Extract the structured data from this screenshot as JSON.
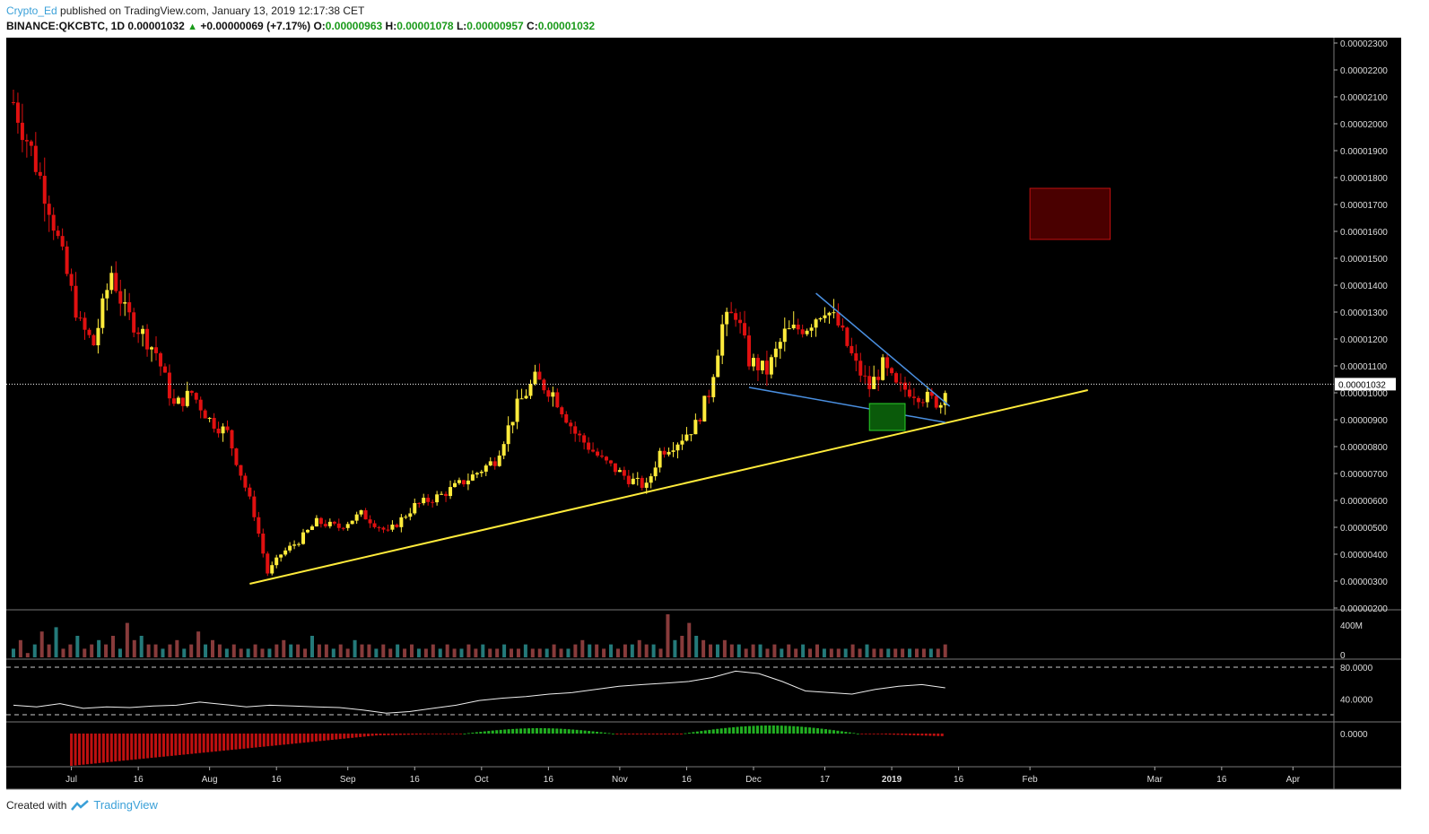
{
  "header": {
    "author": "Crypto_Ed",
    "published_text": "published on TradingView.com, January 13, 2019 12:17:38 CET",
    "symbol": "BINANCE:QKCBTC, 1D",
    "last": "0.00001032",
    "change": "+0.00000069 (+7.17%)",
    "open_label": "O:",
    "open": "0.00000963",
    "high_label": "H:",
    "high": "0.00001078",
    "low_label": "L:",
    "low": "0.00000957",
    "close_label": "C:",
    "close": "0.00001032"
  },
  "footer": {
    "created_with": "Created with",
    "brand": "TradingView"
  },
  "colors": {
    "background": "#000000",
    "up": "#ffeb3b",
    "down": "#e01010",
    "trendline_yellow": "#ffeb3b",
    "trendline_blue": "#4a8fe0",
    "target_box": "#4a0000",
    "support_box": "#0a5a0a"
  },
  "chart_data": [
    {
      "type": "candlestick",
      "ylim": [
        2e-06,
        2.3e-05
      ],
      "y_ticks": [
        "0.00002300",
        "0.00002200",
        "0.00002100",
        "0.00002000",
        "0.00001900",
        "0.00001800",
        "0.00001700",
        "0.00001600",
        "0.00001500",
        "0.00001400",
        "0.00001300",
        "0.00001200",
        "0.00001100",
        "0.00001000",
        "0.00000900",
        "0.00000800",
        "0.00000700",
        "0.00000600",
        "0.00000500",
        "0.00000400",
        "0.00000300",
        "0.00000200"
      ],
      "x_ticks": [
        "Jul",
        "16",
        "Aug",
        "16",
        "Sep",
        "16",
        "Oct",
        "16",
        "Nov",
        "16",
        "Dec",
        "17",
        "2019",
        "16",
        "Feb",
        "Mar",
        "16",
        "Apr"
      ],
      "current_price_label": "0.00001032",
      "close_path": [
        [
          "2018-06-18",
          2.08e-05
        ],
        [
          "2018-06-22",
          1.9e-05
        ],
        [
          "2018-06-26",
          1.7e-05
        ],
        [
          "2018-06-29",
          1.5e-05
        ],
        [
          "2018-07-03",
          1.25e-05
        ],
        [
          "2018-07-06",
          1.18e-05
        ],
        [
          "2018-07-10",
          1.45e-05
        ],
        [
          "2018-07-13",
          1.3e-05
        ],
        [
          "2018-07-17",
          1.22e-05
        ],
        [
          "2018-07-20",
          1.15e-05
        ],
        [
          "2018-07-24",
          9.5e-06
        ],
        [
          "2018-07-28",
          1e-05
        ],
        [
          "2018-08-01",
          9e-06
        ],
        [
          "2018-08-05",
          8.5e-06
        ],
        [
          "2018-08-08",
          7e-06
        ],
        [
          "2018-08-11",
          5.5e-06
        ],
        [
          "2018-08-14",
          3.3e-06
        ],
        [
          "2018-08-17",
          4e-06
        ],
        [
          "2018-08-21",
          4.5e-06
        ],
        [
          "2018-08-25",
          5.2e-06
        ],
        [
          "2018-08-30",
          5e-06
        ],
        [
          "2018-09-04",
          5.5e-06
        ],
        [
          "2018-09-10",
          4.8e-06
        ],
        [
          "2018-09-16",
          5.8e-06
        ],
        [
          "2018-09-22",
          6.2e-06
        ],
        [
          "2018-09-28",
          6.8e-06
        ],
        [
          "2018-10-04",
          7.5e-06
        ],
        [
          "2018-10-09",
          9.5e-06
        ],
        [
          "2018-10-13",
          1.05e-05
        ],
        [
          "2018-10-17",
          1e-05
        ],
        [
          "2018-10-22",
          8.5e-06
        ],
        [
          "2018-10-28",
          7.5e-06
        ],
        [
          "2018-11-03",
          6.8e-06
        ],
        [
          "2018-11-07",
          6.5e-06
        ],
        [
          "2018-11-10",
          7.8e-06
        ],
        [
          "2018-11-14",
          8.2e-06
        ],
        [
          "2018-11-18",
          8.8e-06
        ],
        [
          "2018-11-21",
          1e-05
        ],
        [
          "2018-11-24",
          1.25e-05
        ],
        [
          "2018-11-27",
          1.3e-05
        ],
        [
          "2018-11-30",
          1.12e-05
        ],
        [
          "2018-12-04",
          1.08e-05
        ],
        [
          "2018-12-08",
          1.22e-05
        ],
        [
          "2018-12-13",
          1.25e-05
        ],
        [
          "2018-12-17",
          1.32e-05
        ],
        [
          "2018-12-20",
          1.25e-05
        ],
        [
          "2018-12-24",
          1.1e-05
        ],
        [
          "2018-12-27",
          1.02e-05
        ],
        [
          "2018-12-30",
          1.1e-05
        ],
        [
          "2019-01-02",
          1.02e-05
        ],
        [
          "2019-01-05",
          1.01e-05
        ],
        [
          "2019-01-09",
          9.8e-06
        ],
        [
          "2019-01-12",
          9.6e-06
        ],
        [
          "2019-01-13",
          1.03e-05
        ]
      ]
    },
    {
      "type": "bar",
      "name": "volume",
      "y_ticks": [
        "400M",
        "0"
      ],
      "values": [
        0.2,
        0.4,
        0.1,
        0.3,
        0.6,
        0.3,
        0.7,
        0.2,
        0.3,
        0.5,
        0.2,
        0.3,
        0.4,
        0.3,
        0.5,
        0.2,
        0.8,
        0.4,
        0.5,
        0.3,
        0.3,
        0.2,
        0.3,
        0.4,
        0.2,
        0.3,
        0.6,
        0.3,
        0.4,
        0.3,
        0.2,
        0.3,
        0.2,
        0.2,
        0.3,
        0.2,
        0.2,
        0.3,
        0.4,
        0.3,
        0.3,
        0.2,
        0.5,
        0.3,
        0.3,
        0.2,
        0.3,
        0.2,
        0.4,
        0.3,
        0.3,
        0.2,
        0.3,
        0.2,
        0.3,
        0.2,
        0.3,
        0.2,
        0.2,
        0.3,
        0.2,
        0.3,
        0.2,
        0.2,
        0.3,
        0.2,
        0.3,
        0.2,
        0.2,
        0.3,
        0.2,
        0.2,
        0.3,
        0.2,
        0.2,
        0.2,
        0.3,
        0.2,
        0.2,
        0.3,
        0.4,
        0.3,
        0.3,
        0.2,
        0.3,
        0.2,
        0.3,
        0.3,
        0.4,
        0.3,
        0.3,
        0.2,
        1.0,
        0.4,
        0.5,
        0.8,
        0.5,
        0.4,
        0.3,
        0.3,
        0.4,
        0.3,
        0.3,
        0.2,
        0.3,
        0.3,
        0.2,
        0.3,
        0.2,
        0.3,
        0.2,
        0.3,
        0.2,
        0.3,
        0.2,
        0.2,
        0.2,
        0.2,
        0.3,
        0.2,
        0.3,
        0.2,
        0.2,
        0.2,
        0.2,
        0.2,
        0.2,
        0.2,
        0.2,
        0.2,
        0.2,
        0.3
      ]
    },
    {
      "type": "line",
      "name": "RSI",
      "y_ticks": [
        "80.0000",
        "40.0000"
      ],
      "bands": [
        80,
        20
      ],
      "x": [
        0,
        5,
        10,
        15,
        20,
        25,
        30,
        35,
        40,
        45,
        50,
        55,
        60,
        65,
        70,
        75,
        80,
        85,
        90,
        95,
        100,
        105,
        110,
        115,
        120,
        125,
        130,
        135,
        140,
        145,
        150,
        155,
        160,
        165,
        170,
        175,
        180,
        185,
        190,
        195,
        200
      ],
      "values": [
        32,
        30,
        34,
        28,
        30,
        29,
        31,
        32,
        36,
        33,
        30,
        32,
        31,
        30,
        29,
        26,
        22,
        24,
        28,
        32,
        38,
        41,
        43,
        46,
        48,
        52,
        56,
        58,
        60,
        62,
        67,
        75,
        72,
        62,
        50,
        48,
        46,
        52,
        56,
        58,
        54
      ]
    },
    {
      "type": "bar",
      "name": "histogram",
      "y_ticks": [
        "0.0000"
      ]
    }
  ]
}
